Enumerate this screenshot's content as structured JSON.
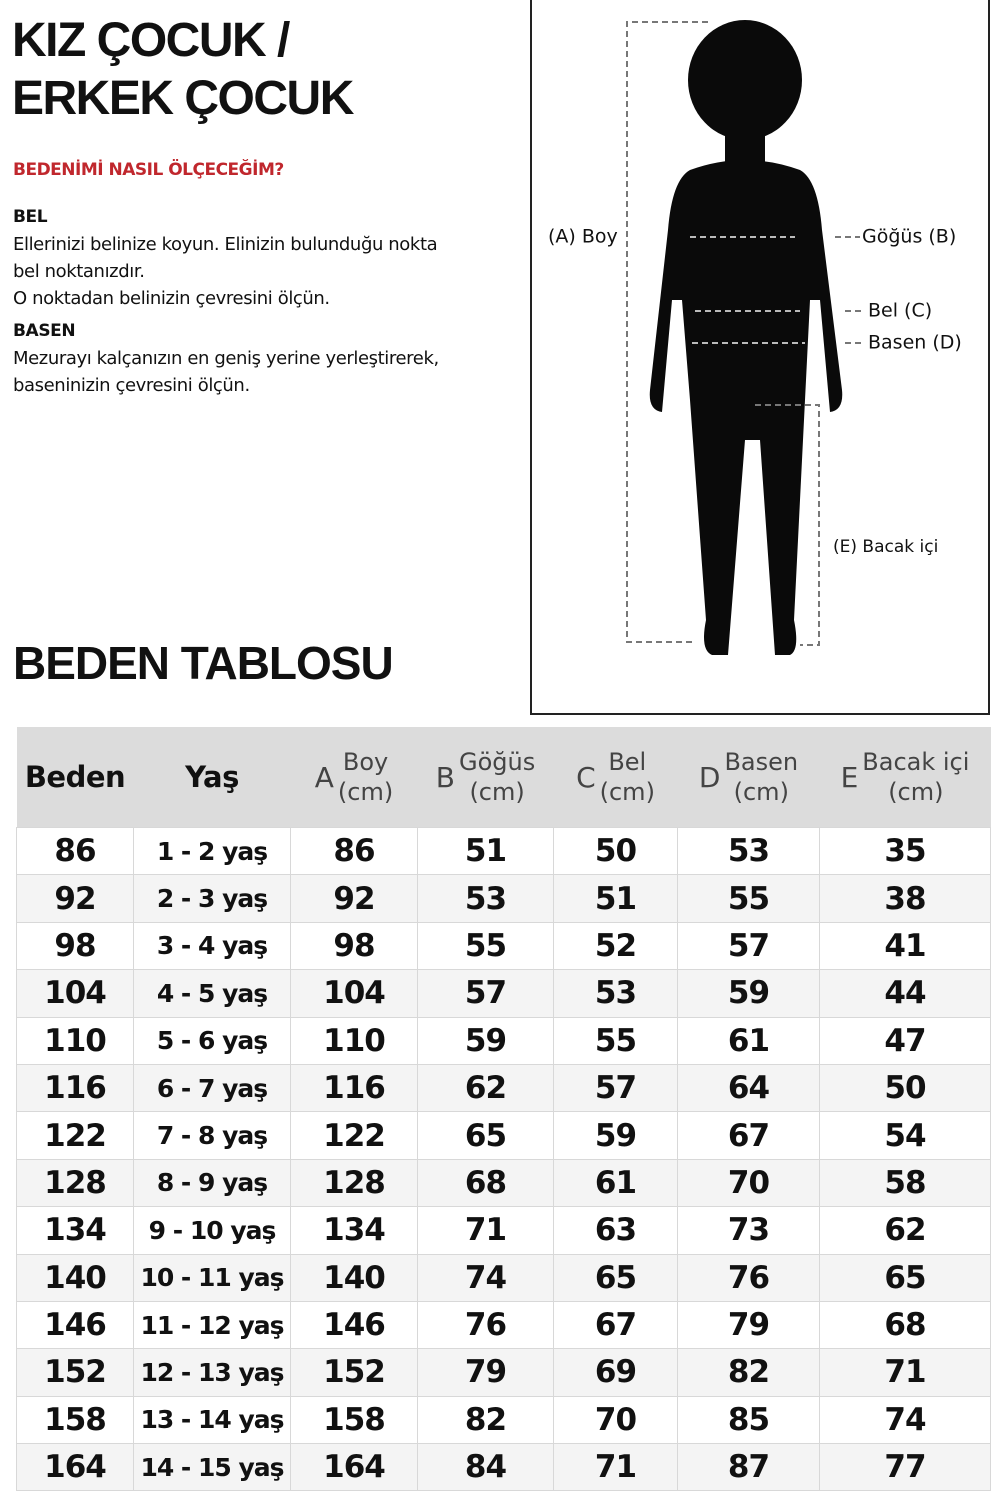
{
  "header": {
    "title_lines": [
      "KIZ ÇOCUK /",
      "ERKEK ÇOCUK"
    ]
  },
  "guide": {
    "heading": "BEDENİMİ NASIL ÖLÇECEĞİM?",
    "sections": [
      {
        "title": "BEL",
        "lines": [
          "Ellerinizi belinize koyun. Elinizin bulunduğu nokta",
          "bel noktanızdır.",
          "O noktadan belinizin çevresini ölçün."
        ]
      },
      {
        "title": "BASEN",
        "lines": [
          "Mezurayı kalçanızın en geniş yerine yerleştirerek,",
          "baseninizin çevresini ölçün."
        ]
      }
    ]
  },
  "figure": {
    "labels": {
      "boy": "(A) Boy",
      "gogus": "Göğüs (B)",
      "bel": "Bel (C)",
      "basen": "Basen (D)",
      "bacak": "(E) Bacak içi"
    }
  },
  "table": {
    "title": "BEDEN TABLOSU",
    "columns": [
      {
        "name": "Beden"
      },
      {
        "name": "Yaş"
      },
      {
        "letter": "A",
        "name": "Boy",
        "unit": "(cm)"
      },
      {
        "letter": "B",
        "name": "Göğüs",
        "unit": "(cm)"
      },
      {
        "letter": "C",
        "name": "Bel",
        "unit": "(cm)"
      },
      {
        "letter": "D",
        "name": "Basen",
        "unit": "(cm)"
      },
      {
        "letter": "E",
        "name": "Bacak içi",
        "unit": "(cm)"
      }
    ],
    "rows": [
      [
        86,
        "1 - 2 yaş",
        86,
        51,
        50,
        53,
        35
      ],
      [
        92,
        "2 - 3 yaş",
        92,
        53,
        51,
        55,
        38
      ],
      [
        98,
        "3 - 4 yaş",
        98,
        55,
        52,
        57,
        41
      ],
      [
        104,
        "4 - 5 yaş",
        104,
        57,
        53,
        59,
        44
      ],
      [
        110,
        "5 - 6 yaş",
        110,
        59,
        55,
        61,
        47
      ],
      [
        116,
        "6 - 7 yaş",
        116,
        62,
        57,
        64,
        50
      ],
      [
        122,
        "7 - 8 yaş",
        122,
        65,
        59,
        67,
        54
      ],
      [
        128,
        "8 - 9 yaş",
        128,
        68,
        61,
        70,
        58
      ],
      [
        134,
        "9 - 10 yaş",
        134,
        71,
        63,
        73,
        62
      ],
      [
        140,
        "10 - 11 yaş",
        140,
        74,
        65,
        76,
        65
      ],
      [
        146,
        "11 - 12 yaş",
        146,
        76,
        67,
        79,
        68
      ],
      [
        152,
        "12 - 13 yaş",
        152,
        79,
        69,
        82,
        71
      ],
      [
        158,
        "13 - 14 yaş",
        158,
        82,
        70,
        85,
        74
      ],
      [
        164,
        "14 - 15 yaş",
        164,
        84,
        71,
        87,
        77
      ]
    ]
  }
}
